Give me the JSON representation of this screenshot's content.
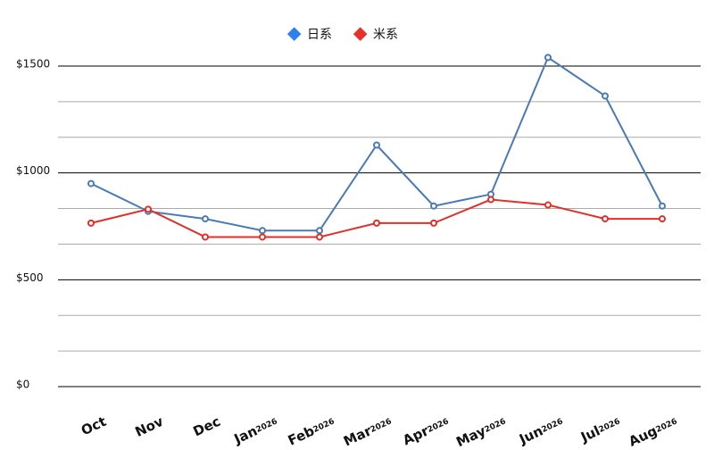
{
  "chart_data": {
    "type": "line",
    "categories": [
      "Oct",
      "Nov",
      "Dec",
      "Jan",
      "Feb",
      "Mar",
      "Apr",
      "May",
      "Jun",
      "Jul",
      "Aug"
    ],
    "year_labels": [
      null,
      null,
      null,
      "2026",
      "2026",
      "2026",
      "2026",
      "2026",
      "2026",
      "2026",
      "2026"
    ],
    "series": [
      {
        "name": "日系",
        "color": "#4a7ab5",
        "legend_color": "#2f80ed",
        "values": [
          950,
          820,
          785,
          730,
          730,
          1130,
          845,
          900,
          1540,
          1360,
          845
        ]
      },
      {
        "name": "米系",
        "color": "#e0302a",
        "legend_color": "#e8302a",
        "values": [
          765,
          830,
          700,
          700,
          700,
          765,
          765,
          875,
          850,
          785,
          785
        ]
      }
    ],
    "ylim": [
      0,
      1600
    ],
    "yticks": [
      {
        "value": 0,
        "label": "$0"
      },
      {
        "value": 500,
        "label": "$500"
      },
      {
        "value": 1000,
        "label": "$1000"
      },
      {
        "value": 1500,
        "label": "$1500"
      }
    ],
    "minor_yticks": [
      166.67,
      333.33,
      666.67,
      833.33,
      1166.67,
      1333.33
    ],
    "grid": true
  }
}
